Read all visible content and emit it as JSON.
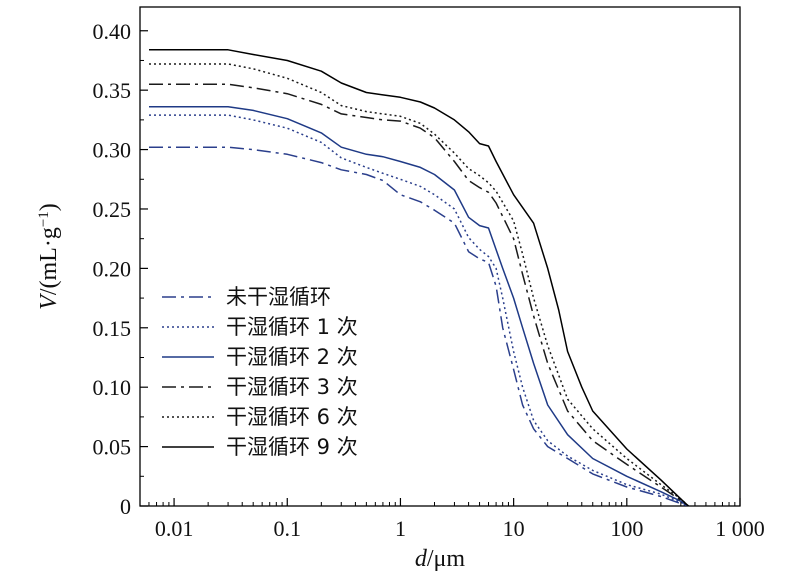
{
  "chart_data": {
    "type": "line",
    "xscale": "log",
    "xlim": [
      0.005,
      1000
    ],
    "ylim": [
      0,
      0.42
    ],
    "xlabel": {
      "italic": "d",
      "rest": "/μm"
    },
    "ylabel": {
      "italic": "V",
      "rest": "/(mL·g",
      "sup": "−1",
      "close": ")"
    },
    "x_ticks": [
      {
        "value": 0.01,
        "label": "0.01"
      },
      {
        "value": 0.1,
        "label": "0.1"
      },
      {
        "value": 1,
        "label": "1"
      },
      {
        "value": 10,
        "label": "10"
      },
      {
        "value": 100,
        "label": "100"
      },
      {
        "value": 1000,
        "label": "1 000"
      }
    ],
    "y_ticks": [
      {
        "value": 0,
        "label": "0"
      },
      {
        "value": 0.05,
        "label": "0.05"
      },
      {
        "value": 0.1,
        "label": "0.10"
      },
      {
        "value": 0.15,
        "label": "0.15"
      },
      {
        "value": 0.2,
        "label": "0.20"
      },
      {
        "value": 0.25,
        "label": "0.25"
      },
      {
        "value": 0.3,
        "label": "0.30"
      },
      {
        "value": 0.35,
        "label": "0.35"
      },
      {
        "value": 0.4,
        "label": "0.40"
      }
    ],
    "grid": false,
    "legend_position": "center-left",
    "series": [
      {
        "name": "未干湿循环",
        "color": "#2b3f8c",
        "dash": "14 5 3 5",
        "points": [
          [
            0.006,
            0.302
          ],
          [
            0.03,
            0.302
          ],
          [
            0.05,
            0.3
          ],
          [
            0.1,
            0.296
          ],
          [
            0.2,
            0.289
          ],
          [
            0.3,
            0.283
          ],
          [
            0.5,
            0.279
          ],
          [
            0.7,
            0.274
          ],
          [
            1,
            0.262
          ],
          [
            1.5,
            0.256
          ],
          [
            2,
            0.249
          ],
          [
            3,
            0.238
          ],
          [
            4,
            0.214
          ],
          [
            5,
            0.208
          ],
          [
            6,
            0.205
          ],
          [
            7,
            0.185
          ],
          [
            8,
            0.15
          ],
          [
            10,
            0.115
          ],
          [
            12,
            0.085
          ],
          [
            15,
            0.065
          ],
          [
            20,
            0.05
          ],
          [
            30,
            0.04
          ],
          [
            50,
            0.027
          ],
          [
            100,
            0.016
          ],
          [
            200,
            0.008
          ],
          [
            300,
            0.002
          ],
          [
            350,
            0
          ]
        ]
      },
      {
        "name": "干湿循环 1 次",
        "color": "#2b3f8c",
        "dash": "2 3",
        "points": [
          [
            0.006,
            0.329
          ],
          [
            0.03,
            0.329
          ],
          [
            0.05,
            0.325
          ],
          [
            0.1,
            0.318
          ],
          [
            0.2,
            0.306
          ],
          [
            0.3,
            0.293
          ],
          [
            0.5,
            0.285
          ],
          [
            0.7,
            0.28
          ],
          [
            1,
            0.275
          ],
          [
            1.5,
            0.269
          ],
          [
            2,
            0.262
          ],
          [
            3,
            0.25
          ],
          [
            4,
            0.226
          ],
          [
            5,
            0.216
          ],
          [
            6,
            0.21
          ],
          [
            7,
            0.2
          ],
          [
            8,
            0.175
          ],
          [
            10,
            0.13
          ],
          [
            12,
            0.1
          ],
          [
            15,
            0.072
          ],
          [
            20,
            0.055
          ],
          [
            30,
            0.042
          ],
          [
            50,
            0.03
          ],
          [
            100,
            0.018
          ],
          [
            200,
            0.01
          ],
          [
            300,
            0.003
          ],
          [
            350,
            0
          ]
        ]
      },
      {
        "name": "干湿循环 2 次",
        "color": "#1f3a86",
        "dash": "",
        "points": [
          [
            0.006,
            0.336
          ],
          [
            0.03,
            0.336
          ],
          [
            0.05,
            0.333
          ],
          [
            0.1,
            0.326
          ],
          [
            0.2,
            0.314
          ],
          [
            0.3,
            0.302
          ],
          [
            0.5,
            0.296
          ],
          [
            0.7,
            0.294
          ],
          [
            1,
            0.29
          ],
          [
            1.5,
            0.285
          ],
          [
            2,
            0.279
          ],
          [
            3,
            0.266
          ],
          [
            4,
            0.243
          ],
          [
            5,
            0.236
          ],
          [
            6,
            0.234
          ],
          [
            8,
            0.2
          ],
          [
            10,
            0.175
          ],
          [
            12,
            0.15
          ],
          [
            15,
            0.12
          ],
          [
            20,
            0.085
          ],
          [
            30,
            0.06
          ],
          [
            50,
            0.04
          ],
          [
            100,
            0.025
          ],
          [
            200,
            0.012
          ],
          [
            300,
            0.004
          ],
          [
            350,
            0
          ]
        ]
      },
      {
        "name": "干湿循环 3 次",
        "color": "#1a1a1a",
        "dash": "14 5 3 5",
        "points": [
          [
            0.006,
            0.355
          ],
          [
            0.03,
            0.355
          ],
          [
            0.05,
            0.352
          ],
          [
            0.1,
            0.347
          ],
          [
            0.2,
            0.338
          ],
          [
            0.3,
            0.33
          ],
          [
            0.5,
            0.327
          ],
          [
            0.7,
            0.325
          ],
          [
            1,
            0.324
          ],
          [
            1.5,
            0.318
          ],
          [
            2,
            0.31
          ],
          [
            3,
            0.29
          ],
          [
            4,
            0.274
          ],
          [
            5,
            0.268
          ],
          [
            6,
            0.264
          ],
          [
            7,
            0.255
          ],
          [
            10,
            0.225
          ],
          [
            12,
            0.195
          ],
          [
            15,
            0.16
          ],
          [
            20,
            0.12
          ],
          [
            30,
            0.08
          ],
          [
            50,
            0.055
          ],
          [
            100,
            0.035
          ],
          [
            200,
            0.016
          ],
          [
            300,
            0.005
          ],
          [
            350,
            0
          ]
        ]
      },
      {
        "name": "干湿循环 6 次",
        "color": "#1a1a1a",
        "dash": "2 3",
        "points": [
          [
            0.006,
            0.372
          ],
          [
            0.03,
            0.372
          ],
          [
            0.05,
            0.368
          ],
          [
            0.1,
            0.36
          ],
          [
            0.2,
            0.348
          ],
          [
            0.3,
            0.337
          ],
          [
            0.5,
            0.332
          ],
          [
            0.7,
            0.33
          ],
          [
            1,
            0.328
          ],
          [
            1.5,
            0.322
          ],
          [
            2,
            0.313
          ],
          [
            3,
            0.297
          ],
          [
            4,
            0.284
          ],
          [
            5,
            0.278
          ],
          [
            6,
            0.272
          ],
          [
            7,
            0.265
          ],
          [
            10,
            0.24
          ],
          [
            12,
            0.212
          ],
          [
            15,
            0.175
          ],
          [
            20,
            0.135
          ],
          [
            30,
            0.09
          ],
          [
            50,
            0.065
          ],
          [
            100,
            0.04
          ],
          [
            200,
            0.018
          ],
          [
            300,
            0.006
          ],
          [
            350,
            0
          ]
        ]
      },
      {
        "name": "干湿循环 9 次",
        "color": "#000000",
        "dash": "",
        "points": [
          [
            0.006,
            0.384
          ],
          [
            0.03,
            0.384
          ],
          [
            0.05,
            0.38
          ],
          [
            0.1,
            0.375
          ],
          [
            0.2,
            0.366
          ],
          [
            0.3,
            0.356
          ],
          [
            0.5,
            0.348
          ],
          [
            0.7,
            0.346
          ],
          [
            1,
            0.344
          ],
          [
            1.5,
            0.34
          ],
          [
            2,
            0.335
          ],
          [
            3,
            0.325
          ],
          [
            4,
            0.315
          ],
          [
            5,
            0.305
          ],
          [
            6,
            0.303
          ],
          [
            7,
            0.29
          ],
          [
            10,
            0.262
          ],
          [
            15,
            0.238
          ],
          [
            20,
            0.2
          ],
          [
            25,
            0.165
          ],
          [
            30,
            0.13
          ],
          [
            40,
            0.1
          ],
          [
            50,
            0.08
          ],
          [
            100,
            0.048
          ],
          [
            200,
            0.022
          ],
          [
            300,
            0.006
          ],
          [
            350,
            0
          ]
        ]
      }
    ]
  }
}
